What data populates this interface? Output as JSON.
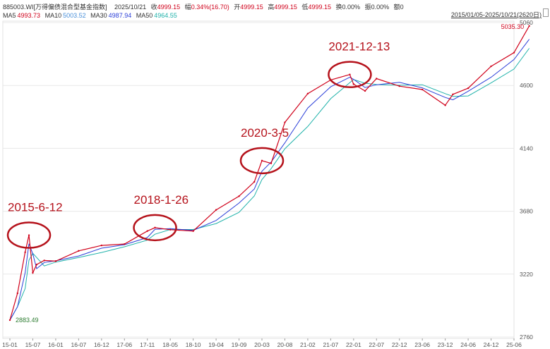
{
  "header": {
    "code": "885003.WI[万得偏债混合型基金指数]",
    "date": "2025/10/21",
    "close_label": "收",
    "close": "4999.15",
    "change_label": "幅",
    "change": "0.34%(16.70)",
    "open_label": "开",
    "open": "4999.15",
    "high_label": "高",
    "high": "4999.15",
    "low_label": "低",
    "low": "4999.15",
    "turnover_label": "换",
    "turnover": "0.00%",
    "amplitude_label": "振",
    "amplitude": "0.00%",
    "volume_label": "额",
    "volume": "0",
    "ma": [
      {
        "label": "MA5",
        "value": "4993.73",
        "color": "#d0021b"
      },
      {
        "label": "MA10",
        "value": "5003.52",
        "color": "#4a90d9"
      },
      {
        "label": "MA30",
        "value": "4987.94",
        "color": "#2b3fd8"
      },
      {
        "label": "MA50",
        "value": "4964.55",
        "color": "#20b2aa"
      }
    ],
    "range": "2015/01/05-2025/10/21(2620日)"
  },
  "chart_data": {
    "type": "line",
    "x_ticks": [
      "15-01",
      "15-07",
      "16-01",
      "16-07",
      "16-12",
      "17-06",
      "17-11",
      "18-05",
      "18-10",
      "19-04",
      "19-09",
      "20-03",
      "20-08",
      "21-02",
      "21-07",
      "22-01",
      "22-07",
      "22-12",
      "23-06",
      "23-12",
      "24-06",
      "24-12",
      "25-06"
    ],
    "y_ticks": [
      2760,
      3220,
      3680,
      4140,
      4600,
      5060
    ],
    "ylim": [
      2760,
      5060
    ],
    "series": [
      {
        "color": "#d0021b",
        "x": [
          "15-01",
          "15-03",
          "15-05",
          "15-06",
          "15-07",
          "15-08",
          "15-10",
          "16-01",
          "16-07",
          "16-12",
          "17-06",
          "17-11",
          "18-01",
          "18-05",
          "18-10",
          "19-04",
          "19-09",
          "20-01",
          "20-03",
          "20-05",
          "20-08",
          "21-02",
          "21-07",
          "21-12",
          "22-01",
          "22-04",
          "22-07",
          "22-12",
          "23-06",
          "23-12",
          "24-02",
          "24-06",
          "24-12",
          "25-06",
          "25-10"
        ],
        "values": [
          2883.49,
          3080,
          3380,
          3505,
          3230,
          3290,
          3320,
          3315,
          3390,
          3430,
          3440,
          3535,
          3560,
          3545,
          3535,
          3690,
          3790,
          3895,
          4050,
          4030,
          4330,
          4540,
          4640,
          4680,
          4610,
          4560,
          4650,
          4595,
          4570,
          4455,
          4535,
          4580,
          4740,
          4840,
          5035.3
        ]
      }
    ],
    "annotations": [
      {
        "text": "2015-6-12",
        "x": "15-06"
      },
      {
        "text": "2018-1-26",
        "x": "18-01"
      },
      {
        "text": "2020-3-5",
        "x": "20-03"
      },
      {
        "text": "2021-12-13",
        "x": "21-12"
      }
    ],
    "min_label": "2883.49",
    "max_label": "5035.30"
  }
}
